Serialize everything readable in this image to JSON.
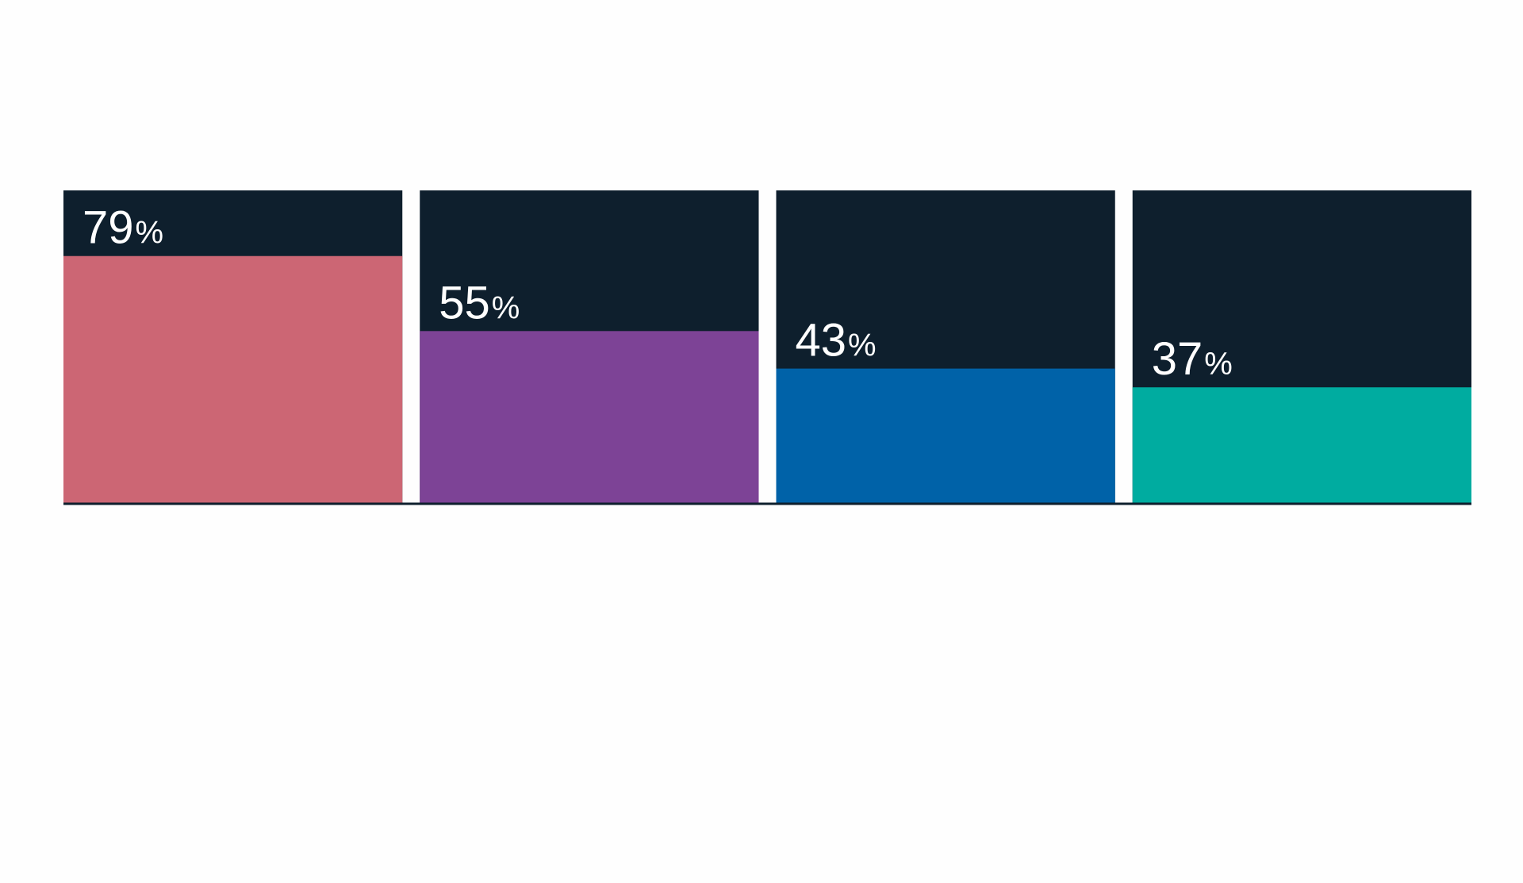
{
  "chart_data": {
    "type": "bar",
    "categories": [
      "",
      "",
      "",
      ""
    ],
    "values": [
      79,
      55,
      43,
      37
    ],
    "value_suffix": "%",
    "ylim": [
      0,
      100
    ],
    "grid": false,
    "legend": "none",
    "labels": [
      "79",
      "55",
      "43",
      "37"
    ],
    "colors": {
      "background_track": "#0e1f2d",
      "baseline": "#0e1f2d",
      "bars": [
        "#cc6674",
        "#7d4396",
        "#0062a8",
        "#00aca0"
      ]
    }
  }
}
